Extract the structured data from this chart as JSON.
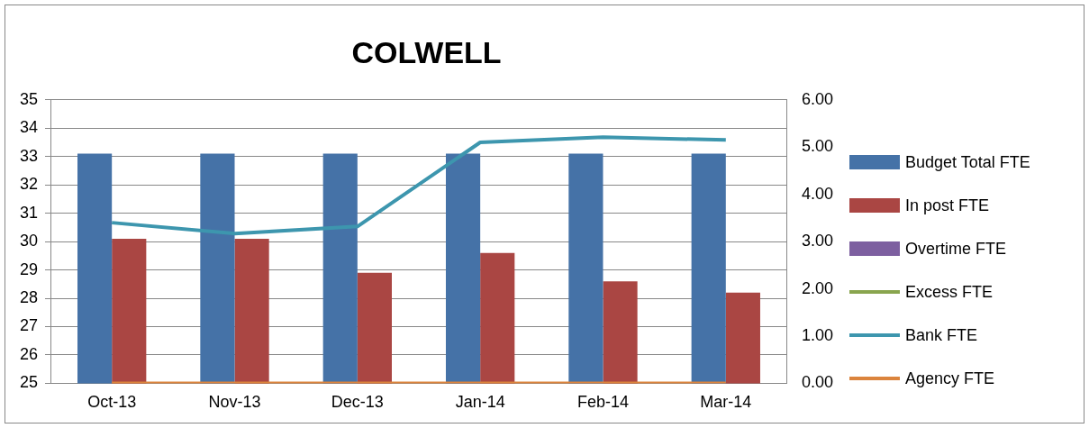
{
  "chart_data": {
    "type": "bar",
    "title": "COLWELL",
    "categories": [
      "Oct-13",
      "Nov-13",
      "Dec-13",
      "Jan-14",
      "Feb-14",
      "Mar-14"
    ],
    "series": [
      {
        "name": "Budget Total FTE",
        "color": "#4572a7",
        "values": [
          33.1,
          33.1,
          33.1,
          33.1,
          33.1,
          33.1
        ]
      },
      {
        "name": "In post FTE",
        "color": "#aa4643",
        "values": [
          30.1,
          30.1,
          28.9,
          29.6,
          28.6,
          28.2
        ]
      },
      {
        "name": "Overtime FTE",
        "color": "#7d5fa0",
        "axis": "y2",
        "values": [
          0,
          0,
          0,
          0,
          0,
          0
        ]
      },
      {
        "name": "Excess FTE",
        "type": "line",
        "color": "#89a54e",
        "axis": "y2",
        "values": [
          null,
          null,
          null,
          null,
          null,
          null
        ]
      },
      {
        "name": "Bank FTE",
        "type": "line",
        "color": "#3d96ae",
        "axis": "y2",
        "values": [
          3.4,
          3.17,
          3.32,
          5.1,
          5.21,
          5.15
        ]
      },
      {
        "name": "Agency FTE",
        "type": "line",
        "color": "#db843d",
        "axis": "y2",
        "values": [
          0,
          0,
          0,
          0,
          0,
          0
        ]
      }
    ],
    "ylim": [
      25,
      35
    ],
    "yticks": [
      25,
      26,
      27,
      28,
      29,
      30,
      31,
      32,
      33,
      34,
      35
    ],
    "y2lim": [
      0,
      6
    ],
    "y2ticks": [
      {
        "value": 0,
        "label": "0.00"
      },
      {
        "value": 1,
        "label": "1.00"
      },
      {
        "value": 2,
        "label": "2.00"
      },
      {
        "value": 3,
        "label": "3.00"
      },
      {
        "value": 4,
        "label": "4.00"
      },
      {
        "value": 5,
        "label": "5.00"
      },
      {
        "value": 6,
        "label": "6.00"
      }
    ],
    "grid": "y",
    "legend": "right",
    "marker": "none"
  }
}
